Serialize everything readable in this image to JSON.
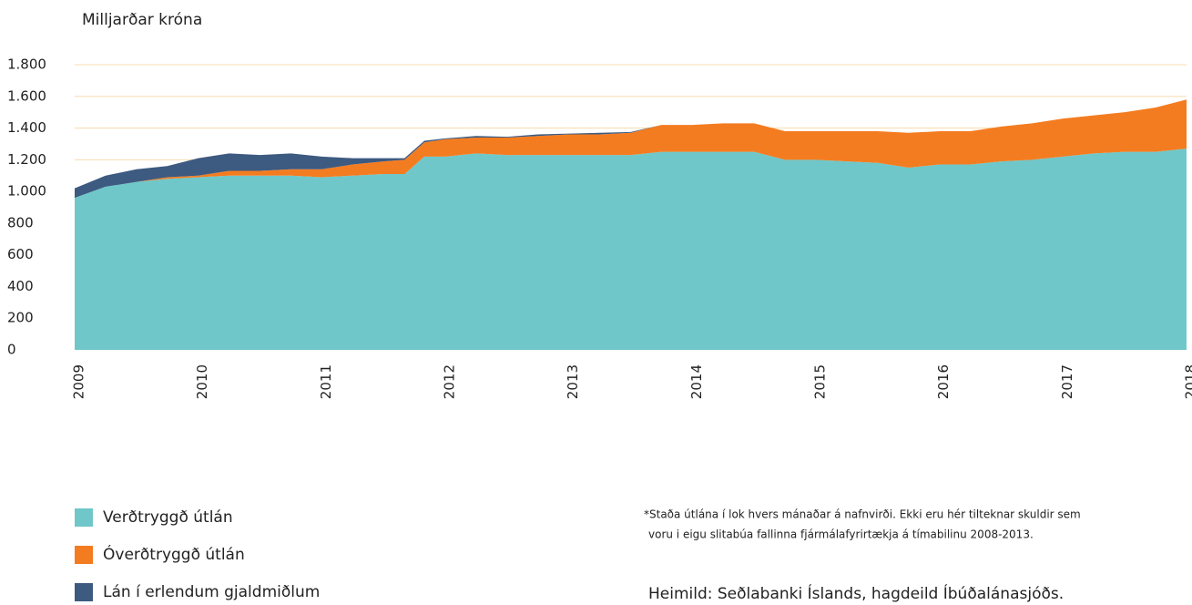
{
  "chart_data": {
    "type": "stacked-area",
    "y_label": "Milljarðar króna",
    "x": [
      2009,
      2009.25,
      2009.5,
      2009.75,
      2010,
      2010.25,
      2010.5,
      2010.75,
      2011,
      2011.25,
      2011.5,
      2011.67,
      2011.83,
      2012,
      2012.25,
      2012.5,
      2012.75,
      2013,
      2013.25,
      2013.5,
      2013.75,
      2014,
      2014.25,
      2014.5,
      2014.75,
      2015,
      2015.25,
      2015.5,
      2015.75,
      2016,
      2016.25,
      2016.5,
      2016.75,
      2017,
      2017.25,
      2017.5,
      2017.75,
      2018
    ],
    "series": [
      {
        "name": "Verðtryggð útlán",
        "color": "#6fc7c9",
        "values": [
          960,
          1030,
          1060,
          1080,
          1090,
          1100,
          1100,
          1100,
          1090,
          1100,
          1110,
          1110,
          1220,
          1220,
          1240,
          1230,
          1230,
          1230,
          1230,
          1230,
          1250,
          1250,
          1250,
          1250,
          1200,
          1200,
          1190,
          1180,
          1150,
          1170,
          1170,
          1190,
          1200,
          1220,
          1240,
          1250,
          1250,
          1270
        ]
      },
      {
        "name": "Óverðtryggð útlán",
        "color": "#f47c20",
        "values": [
          0,
          0,
          0,
          10,
          10,
          30,
          30,
          40,
          50,
          70,
          80,
          90,
          90,
          110,
          100,
          110,
          120,
          130,
          130,
          140,
          170,
          170,
          180,
          180,
          180,
          180,
          190,
          200,
          220,
          210,
          210,
          220,
          230,
          240,
          240,
          250,
          280,
          310
        ]
      },
      {
        "name": "Lán í erlendum gjaldmiðlum",
        "color": "#3d5a80",
        "values": [
          60,
          70,
          80,
          70,
          110,
          110,
          100,
          100,
          80,
          40,
          20,
          10,
          10,
          5,
          10,
          5,
          10,
          5,
          10,
          5,
          0,
          0,
          0,
          0,
          0,
          0,
          0,
          0,
          0,
          0,
          0,
          0,
          0,
          0,
          0,
          0,
          0,
          0
        ]
      }
    ],
    "xlim": [
      2009,
      2018
    ],
    "xticks": [
      2009,
      2010,
      2011,
      2012,
      2013,
      2014,
      2015,
      2016,
      2017,
      2018
    ],
    "ylim": [
      0,
      1800
    ],
    "yticks": [
      {
        "value": 0,
        "label": "0"
      },
      {
        "value": 200,
        "label": "200"
      },
      {
        "value": 400,
        "label": "400"
      },
      {
        "value": 600,
        "label": "600"
      },
      {
        "value": 800,
        "label": "800"
      },
      {
        "value": 1000,
        "label": "1.000"
      },
      {
        "value": 1200,
        "label": "1.200"
      },
      {
        "value": 1400,
        "label": "1.400"
      },
      {
        "value": 1600,
        "label": "1.600"
      },
      {
        "value": 1800,
        "label": "1.800"
      }
    ],
    "grid": true,
    "grid_color": "#f8dcae",
    "note": [
      "*Staða útlána í lok hvers mánaðar á nafnvirði. Ekki eru hér tilteknar skuldir sem",
      "voru i eigu slitabúa fallinna fjármálafyrirtækja á tímabilinu 2008-2013."
    ],
    "source": "Heimild: Seðlabanki Íslands, hagdeild Íbúðalánasjóðs."
  }
}
